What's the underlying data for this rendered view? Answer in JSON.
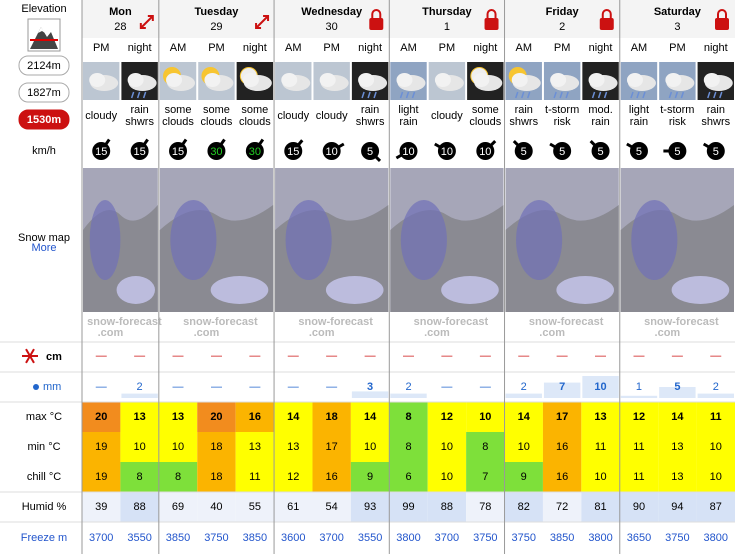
{
  "sidebar": {
    "elevation_label": "Elevation",
    "elevations": [
      "2124m",
      "1827m",
      "1530m"
    ],
    "selected": 2,
    "wind_unit": "km/h",
    "snow_map": "Snow map",
    "more": "More",
    "snow_unit": "cm",
    "rain_unit": "mm",
    "max_label": "max °C",
    "min_label": "min °C",
    "chill_label": "chill °C",
    "humid_label": "Humid %",
    "freeze_label": "Freeze m"
  },
  "days": [
    {
      "name": "Mon",
      "date": 28,
      "periods": [
        "PM",
        "night"
      ]
    },
    {
      "name": "Tuesday",
      "date": 29,
      "periods": [
        "AM",
        "PM",
        "night"
      ]
    },
    {
      "name": "Wednesday",
      "date": 30,
      "periods": [
        "AM",
        "PM",
        "night"
      ]
    },
    {
      "name": "Thursday",
      "date": 1,
      "periods": [
        "AM",
        "PM",
        "night"
      ]
    },
    {
      "name": "Friday",
      "date": 2,
      "periods": [
        "AM",
        "PM",
        "night"
      ]
    },
    {
      "name": "Saturday",
      "date": 3,
      "periods": [
        "AM",
        "PM",
        "night"
      ]
    }
  ],
  "weather": [
    [
      "cloudy"
    ],
    [
      "rain",
      "shwrs"
    ],
    [
      "some",
      "clouds"
    ],
    [
      "some",
      "clouds"
    ],
    [
      "some",
      "clouds"
    ],
    [
      "cloudy"
    ],
    [
      "cloudy"
    ],
    [
      "rain",
      "shwrs"
    ],
    [
      "light",
      "rain"
    ],
    [
      "cloudy"
    ],
    [
      "some",
      "clouds"
    ],
    [
      "rain",
      "shwrs"
    ],
    [
      "t-storm",
      "risk"
    ],
    [
      "mod.",
      "rain"
    ],
    [
      "light",
      "rain"
    ],
    [
      "t-storm",
      "risk"
    ],
    [
      "rain",
      "shwrs"
    ]
  ],
  "wind": {
    "speed": [
      15,
      15,
      15,
      30,
      30,
      15,
      10,
      5,
      10,
      10,
      10,
      5,
      5,
      5,
      5,
      5,
      5
    ],
    "direction_deg": [
      35,
      35,
      35,
      35,
      35,
      40,
      60,
      135,
      -120,
      -60,
      45,
      -45,
      -60,
      -45,
      -60,
      -90,
      -60
    ],
    "strong_min": 30,
    "strong_color": "#22cc22"
  },
  "logo": [
    "snow-forecast",
    ".com"
  ],
  "snow_cm": {
    "values": [
      null,
      null,
      null,
      null,
      null,
      null,
      null,
      null,
      null,
      null,
      null,
      null,
      null,
      null,
      null,
      null,
      null
    ],
    "none_label": "—"
  },
  "rain_mm": {
    "values": [
      null,
      2,
      null,
      null,
      null,
      null,
      null,
      3,
      2,
      null,
      null,
      2,
      7,
      10,
      1,
      5,
      2
    ],
    "none_label": "—"
  },
  "max_c": [
    20,
    13,
    13,
    20,
    16,
    14,
    18,
    14,
    8,
    12,
    10,
    14,
    17,
    13,
    12,
    14,
    11
  ],
  "min_c": [
    19,
    10,
    10,
    18,
    13,
    13,
    17,
    10,
    8,
    10,
    8,
    10,
    16,
    11,
    11,
    13,
    10
  ],
  "chill_c": [
    19,
    8,
    8,
    18,
    11,
    12,
    16,
    9,
    6,
    10,
    7,
    9,
    16,
    10,
    11,
    13,
    10
  ],
  "humid_pct": [
    39,
    88,
    69,
    40,
    55,
    61,
    54,
    93,
    99,
    88,
    78,
    82,
    72,
    81,
    90,
    94,
    87
  ],
  "freeze_m": [
    3700,
    3550,
    3850,
    3750,
    3850,
    3600,
    3700,
    3550,
    3800,
    3700,
    3750,
    3750,
    3850,
    3800,
    3650,
    3750,
    3800
  ],
  "temp_colors": [
    {
      "min": 20,
      "color": "#f28c1e"
    },
    {
      "min": 16,
      "color": "#fbb400"
    },
    {
      "min": 10,
      "color": "#ffff00"
    },
    {
      "min": -50,
      "color": "#7ee03a"
    }
  ]
}
